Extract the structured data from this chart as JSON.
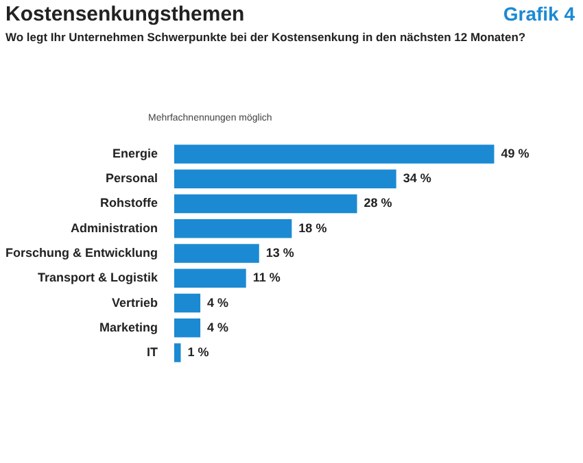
{
  "chart_data": {
    "type": "bar",
    "orientation": "horizontal",
    "title": "Kostensenkungsthemen",
    "subtitle": "Wo legt Ihr Unternehmen Schwerpunkte bei der Kostensenkung in den nächsten 12 Monaten?",
    "annotations": [
      "Grafik 4",
      "Mehrfachnennungen möglich"
    ],
    "categories": [
      "Energie",
      "Personal",
      "Rohstoffe",
      "Administration",
      "Forschung & Entwicklung",
      "Transport & Logistik",
      "Vertrieb",
      "Marketing",
      "IT"
    ],
    "values": [
      49,
      34,
      28,
      18,
      13,
      11,
      4,
      4,
      1
    ],
    "value_labels": [
      "49 %",
      "34 %",
      "28 %",
      "18 %",
      "13 %",
      "11 %",
      "4 %",
      "4 %",
      "1 %"
    ],
    "color": "#1b8ad3"
  }
}
